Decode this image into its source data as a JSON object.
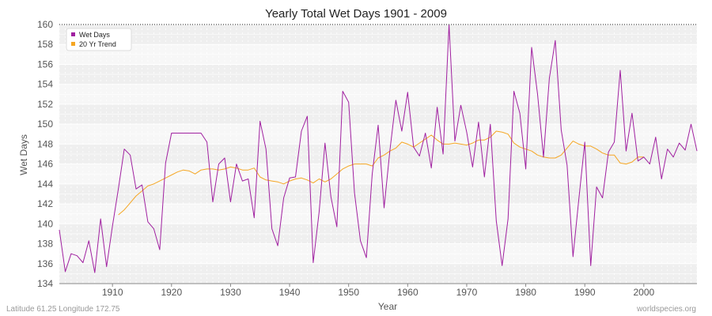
{
  "footer": {
    "left": "Latitude 61.25 Longitude 172.75",
    "right": "worldspecies.org"
  },
  "chart_data": {
    "type": "line",
    "title": "Yearly Total Wet Days 1901 - 2009",
    "xlabel": "Year",
    "ylabel": "Wet Days",
    "xlim": [
      1901,
      2009
    ],
    "ylim": [
      134,
      160
    ],
    "xticks": [
      1910,
      1920,
      1930,
      1940,
      1950,
      1960,
      1970,
      1980,
      1990,
      2000
    ],
    "yticks": [
      134,
      136,
      138,
      140,
      142,
      144,
      146,
      148,
      150,
      152,
      154,
      156,
      158,
      160
    ],
    "grid": true,
    "legend_position": "top-left",
    "series": [
      {
        "name": "Wet Days",
        "color": "#a020a0",
        "x": [
          1901,
          1902,
          1903,
          1904,
          1905,
          1906,
          1907,
          1908,
          1909,
          1910,
          1911,
          1912,
          1913,
          1914,
          1915,
          1916,
          1917,
          1918,
          1919,
          1920,
          1921,
          1922,
          1923,
          1924,
          1925,
          1926,
          1927,
          1928,
          1929,
          1930,
          1931,
          1932,
          1933,
          1934,
          1935,
          1936,
          1937,
          1938,
          1939,
          1940,
          1941,
          1942,
          1943,
          1944,
          1945,
          1946,
          1947,
          1948,
          1949,
          1950,
          1951,
          1952,
          1953,
          1954,
          1955,
          1956,
          1957,
          1958,
          1959,
          1960,
          1961,
          1962,
          1963,
          1964,
          1965,
          1966,
          1967,
          1968,
          1969,
          1970,
          1971,
          1972,
          1973,
          1974,
          1975,
          1976,
          1977,
          1978,
          1979,
          1980,
          1981,
          1982,
          1983,
          1984,
          1985,
          1986,
          1987,
          1988,
          1989,
          1990,
          1991,
          1992,
          1993,
          1994,
          1995,
          1996,
          1997,
          1998,
          1999,
          2000,
          2001,
          2002,
          2003,
          2004,
          2005,
          2006,
          2007,
          2008,
          2009
        ],
        "values": [
          139.4,
          135.2,
          137.0,
          136.8,
          136.1,
          138.3,
          135.1,
          140.5,
          135.7,
          139.8,
          143.5,
          147.5,
          146.9,
          143.5,
          143.9,
          140.2,
          139.5,
          137.4,
          146.1,
          149.1,
          149.1,
          149.1,
          149.1,
          149.1,
          149.1,
          148.2,
          142.2,
          146.0,
          146.6,
          142.2,
          146.0,
          144.3,
          144.5,
          140.6,
          150.3,
          147.5,
          139.5,
          137.8,
          142.6,
          144.6,
          144.7,
          149.3,
          150.8,
          136.1,
          141.2,
          148.1,
          142.7,
          139.7,
          153.3,
          152.2,
          143.1,
          138.3,
          136.6,
          145.0,
          149.9,
          141.6,
          147.4,
          152.4,
          149.3,
          153.2,
          147.7,
          146.8,
          149.1,
          145.6,
          151.7,
          147.0,
          160.0,
          148.3,
          151.9,
          149.2,
          145.7,
          150.2,
          144.7,
          150.0,
          140.3,
          135.8,
          140.5,
          153.3,
          151.1,
          145.5,
          157.7,
          153.0,
          146.7,
          154.6,
          158.4,
          149.4,
          145.9,
          136.7,
          142.5,
          148.2,
          135.8,
          143.7,
          142.6,
          147.2,
          148.2,
          155.4,
          147.3,
          151.1,
          146.3,
          146.7,
          146.0,
          148.7,
          144.5,
          147.5,
          146.7,
          148.1,
          147.4,
          150.0,
          147.3
        ]
      },
      {
        "name": "20 Yr Trend",
        "color": "#f5a623",
        "x": [
          1911,
          1912,
          1913,
          1914,
          1915,
          1916,
          1917,
          1918,
          1919,
          1920,
          1921,
          1922,
          1923,
          1924,
          1925,
          1926,
          1927,
          1928,
          1929,
          1930,
          1931,
          1932,
          1933,
          1934,
          1935,
          1936,
          1937,
          1938,
          1939,
          1940,
          1941,
          1942,
          1943,
          1944,
          1945,
          1946,
          1947,
          1948,
          1949,
          1950,
          1951,
          1952,
          1953,
          1954,
          1955,
          1956,
          1957,
          1958,
          1959,
          1960,
          1961,
          1962,
          1963,
          1964,
          1965,
          1966,
          1967,
          1968,
          1969,
          1970,
          1971,
          1972,
          1973,
          1974,
          1975,
          1976,
          1977,
          1978,
          1979,
          1980,
          1981,
          1982,
          1983,
          1984,
          1985,
          1986,
          1987,
          1988,
          1989,
          1990,
          1991,
          1992,
          1993,
          1994,
          1995,
          1996,
          1997,
          1998,
          1999,
          2000
        ],
        "values": [
          140.9,
          141.4,
          142.1,
          142.8,
          143.3,
          143.8,
          144.0,
          144.3,
          144.6,
          144.9,
          145.2,
          145.4,
          145.3,
          145.0,
          145.4,
          145.5,
          145.5,
          145.4,
          145.5,
          145.7,
          145.6,
          145.4,
          145.4,
          145.6,
          144.7,
          144.4,
          144.3,
          144.2,
          144.0,
          144.3,
          144.5,
          144.6,
          144.4,
          144.1,
          144.5,
          144.2,
          144.5,
          145.0,
          145.5,
          145.8,
          146.0,
          146.0,
          146.0,
          145.8,
          146.6,
          146.9,
          147.3,
          147.6,
          148.2,
          148.0,
          147.7,
          148.1,
          148.5,
          148.9,
          148.4,
          148.0,
          148.0,
          148.1,
          148.0,
          147.9,
          148.1,
          148.4,
          148.4,
          148.7,
          149.3,
          149.2,
          149.0,
          148.1,
          147.7,
          147.5,
          147.3,
          146.9,
          146.7,
          146.6,
          146.6,
          146.9,
          147.6,
          148.3,
          148.0,
          147.8,
          147.8,
          147.5,
          147.1,
          146.9,
          146.9,
          146.1,
          146.0,
          146.2,
          146.7,
          146.7
        ]
      }
    ]
  }
}
